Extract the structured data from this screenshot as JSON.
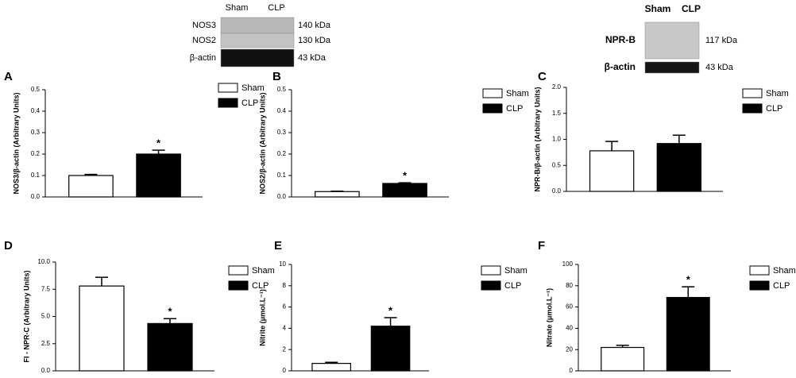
{
  "blots": [
    {
      "columns": [
        "Sham",
        "CLP"
      ],
      "rows": [
        {
          "label": "NOS3",
          "size": "140 kDa"
        },
        {
          "label": "NOS2",
          "size": "130 kDa"
        },
        {
          "label": "β-actin",
          "size": "43 kDa"
        }
      ]
    },
    {
      "columns": [
        "Sham",
        "CLP"
      ],
      "rows": [
        {
          "label": "NPR-B",
          "size": "117 kDa"
        },
        {
          "label": "β-actin",
          "size": "43 kDa"
        }
      ]
    }
  ],
  "chart_data": [
    {
      "type": "bar",
      "panel": "A",
      "y_label": "NOS3/β-actin (Arbitrary Units)",
      "ylim": [
        0,
        0.5
      ],
      "yticks": [
        {
          "value": 0,
          "label": "0.0"
        },
        0.1,
        0.2,
        0.3,
        0.4,
        0.5
      ],
      "series": [
        {
          "name": "Sham",
          "color": "#ffffff",
          "values": [
            0.1
          ],
          "errors": [
            0.005
          ]
        },
        {
          "name": "CLP",
          "color": "#000000",
          "values": [
            0.2
          ],
          "errors": [
            0.018
          ]
        }
      ],
      "annotation": "*"
    },
    {
      "type": "bar",
      "panel": "B",
      "y_label": "NOS2/β-actin (Arbitrary Units)",
      "ylim": [
        0,
        0.5
      ],
      "yticks": [
        {
          "value": 0,
          "label": "0.0"
        },
        0.1,
        0.2,
        0.3,
        0.4,
        0.5
      ],
      "series": [
        {
          "name": "Sham",
          "color": "#ffffff",
          "values": [
            0.025
          ],
          "errors": [
            0.002
          ]
        },
        {
          "name": "CLP",
          "color": "#000000",
          "values": [
            0.063
          ],
          "errors": [
            0.003
          ]
        }
      ],
      "annotation": "*"
    },
    {
      "type": "bar",
      "panel": "C",
      "y_label": "NPR-B/β-actin (Arbitrary Units)",
      "ylim": [
        0,
        2
      ],
      "yticks": [
        {
          "value": 0,
          "label": "0.0"
        },
        0.5,
        {
          "value": 1,
          "label": "1.0"
        },
        1.5,
        {
          "value": 2,
          "label": "2.0"
        }
      ],
      "series": [
        {
          "name": "Sham",
          "color": "#ffffff",
          "values": [
            0.78
          ],
          "errors": [
            0.18
          ]
        },
        {
          "name": "CLP",
          "color": "#000000",
          "values": [
            0.92
          ],
          "errors": [
            0.16
          ]
        }
      ]
    },
    {
      "type": "bar",
      "panel": "D",
      "y_label": "FI - NPR-C (Arbitrary Units)",
      "ylim": [
        0,
        10
      ],
      "yticks": [
        {
          "value": 0,
          "label": "0.0"
        },
        2.5,
        {
          "value": 5,
          "label": "5.0"
        },
        7.5,
        {
          "value": 10,
          "label": "10.0"
        }
      ],
      "series": [
        {
          "name": "Sham",
          "color": "#ffffff",
          "values": [
            7.8
          ],
          "errors": [
            0.8
          ]
        },
        {
          "name": "CLP",
          "color": "#000000",
          "values": [
            4.35
          ],
          "errors": [
            0.45
          ]
        }
      ],
      "annotation": "*"
    },
    {
      "type": "bar",
      "panel": "E",
      "y_label": "Nitrite (μmol.L⁻¹)",
      "ylim": [
        0,
        10
      ],
      "yticks": [
        0,
        2,
        4,
        6,
        8,
        10
      ],
      "series": [
        {
          "name": "Sham",
          "color": "#ffffff",
          "values": [
            0.7
          ],
          "errors": [
            0.1
          ]
        },
        {
          "name": "CLP",
          "color": "#000000",
          "values": [
            4.2
          ],
          "errors": [
            0.8
          ]
        }
      ],
      "annotation": "*"
    },
    {
      "type": "bar",
      "panel": "F",
      "y_label": "Nitrate (μmol.L⁻¹)",
      "ylim": [
        0,
        100
      ],
      "yticks": [
        0,
        20,
        40,
        60,
        80,
        100
      ],
      "series": [
        {
          "name": "Sham",
          "color": "#ffffff",
          "values": [
            22
          ],
          "errors": [
            2
          ]
        },
        {
          "name": "CLP",
          "color": "#000000",
          "values": [
            69
          ],
          "errors": [
            10
          ]
        }
      ],
      "annotation": "*"
    }
  ]
}
